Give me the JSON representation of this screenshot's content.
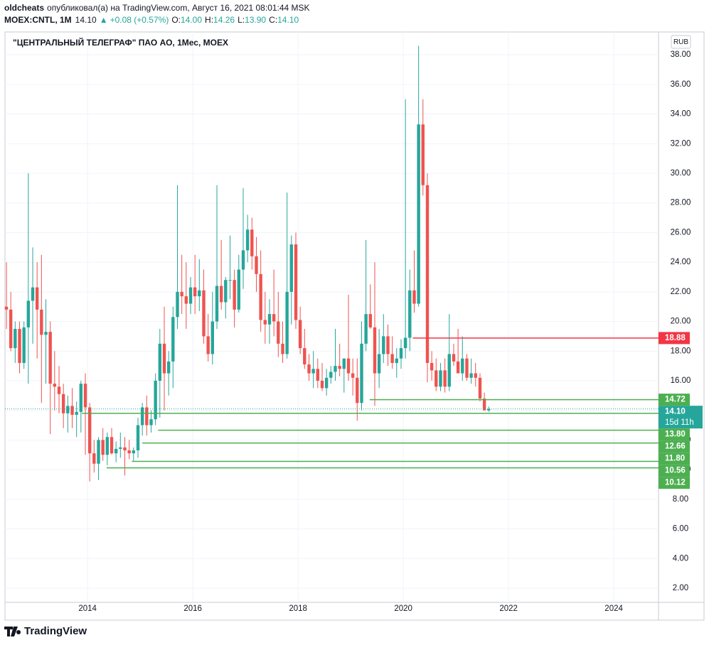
{
  "header": {
    "user": "oldcheats",
    "published": "опубликовал(а) на TradingView.com, Август 16, 2021 08:01:44 MSK",
    "symbol": "MOEX:CNTL, 1M",
    "price": "14.10",
    "change_arrow": "▲",
    "change": "+0.08 (+0.57%)",
    "ohlc_labels": [
      "O:",
      "H:",
      "L:",
      "C:"
    ],
    "ohlc": [
      "14.00",
      "14.26",
      "13.90",
      "14.10"
    ]
  },
  "footer": {
    "brand": "TradingView"
  },
  "chart_data": {
    "type": "candlestick",
    "title": "\"ЦЕНТРАЛЬНЫЙ ТЕЛЕГРАФ\" ПАО АО, 1Мес, MOEX",
    "currency": "RUB",
    "up_color": "#26a69a",
    "down_color": "#ef5350",
    "grid": true,
    "xlim": [
      2012.43,
      2024.85
    ],
    "xticks": [
      2014,
      2016,
      2018,
      2020,
      2022,
      2024
    ],
    "ylim": [
      1.04,
      39.54
    ],
    "yticks": [
      {
        "value": 2,
        "label": "2.00"
      },
      {
        "value": 4,
        "label": "4.00"
      },
      {
        "value": 6,
        "label": "6.00"
      },
      {
        "value": 8,
        "label": "8.00"
      },
      {
        "value": 10,
        "label": "10.00"
      },
      {
        "value": 12,
        "label": "12.00"
      },
      {
        "value": 14,
        "label": "14.00"
      },
      {
        "value": 16,
        "label": "16.00"
      },
      {
        "value": 18,
        "label": "18.00"
      },
      {
        "value": 20,
        "label": "20.00"
      },
      {
        "value": 22,
        "label": "22.00"
      },
      {
        "value": 24,
        "label": "24.00"
      },
      {
        "value": 26,
        "label": "26.00"
      },
      {
        "value": 28,
        "label": "28.00"
      },
      {
        "value": 30,
        "label": "30.00"
      },
      {
        "value": 32,
        "label": "32.00"
      },
      {
        "value": 34,
        "label": "34.00"
      },
      {
        "value": 36,
        "label": "36.00"
      },
      {
        "value": 38,
        "label": "38.00"
      }
    ],
    "x": [
      2012.417,
      2012.5,
      2012.583,
      2012.667,
      2012.75,
      2012.833,
      2012.917,
      2013,
      2013.083,
      2013.167,
      2013.25,
      2013.333,
      2013.417,
      2013.5,
      2013.583,
      2013.667,
      2013.75,
      2013.833,
      2013.917,
      2014,
      2014.083,
      2014.167,
      2014.25,
      2014.333,
      2014.417,
      2014.5,
      2014.583,
      2014.667,
      2014.75,
      2014.833,
      2014.917,
      2015,
      2015.083,
      2015.167,
      2015.25,
      2015.333,
      2015.417,
      2015.5,
      2015.583,
      2015.667,
      2015.75,
      2015.833,
      2015.917,
      2016,
      2016.083,
      2016.167,
      2016.25,
      2016.333,
      2016.417,
      2016.5,
      2016.583,
      2016.667,
      2016.75,
      2016.833,
      2016.917,
      2017,
      2017.083,
      2017.167,
      2017.25,
      2017.333,
      2017.417,
      2017.5,
      2017.583,
      2017.667,
      2017.75,
      2017.833,
      2017.917,
      2018,
      2018.083,
      2018.167,
      2018.25,
      2018.333,
      2018.417,
      2018.5,
      2018.583,
      2018.667,
      2018.75,
      2018.833,
      2018.917,
      2019,
      2019.083,
      2019.167,
      2019.25,
      2019.333,
      2019.417,
      2019.5,
      2019.583,
      2019.667,
      2019.75,
      2019.833,
      2019.917,
      2020,
      2020.083,
      2020.167,
      2020.25,
      2020.333,
      2020.417,
      2020.5,
      2020.583,
      2020.667,
      2020.75,
      2020.833,
      2020.917,
      2021,
      2021.083,
      2021.167,
      2021.25,
      2021.333,
      2021.417,
      2021.5,
      2021.583
    ],
    "open": [
      21,
      20.8,
      18.2,
      19.5,
      17.2,
      19.6,
      21.4,
      22.3,
      20.8,
      19.1,
      19.3,
      15.8,
      15.6,
      15.1,
      13.8,
      14.3,
      13.7,
      13.9,
      15.8,
      14.2,
      11.1,
      10.4,
      12.0,
      11.0,
      12.2,
      11.1,
      11.4,
      11.5,
      11.3,
      11.1,
      11.3,
      13.0,
      14.2,
      13.0,
      13.4,
      16.0,
      18.5,
      16.5,
      17.3,
      20.3,
      22.0,
      21.7,
      21.2,
      22.3,
      21.7,
      22.1,
      19.0,
      17.8,
      20.0,
      22.4,
      21.3,
      22.8,
      22.8,
      20.8,
      23.5,
      24.8,
      26.2,
      24.4,
      23.2,
      20.1,
      19.8,
      20.5,
      20.0,
      18.5,
      17.8,
      22.0,
      25.2,
      20.1,
      18.2,
      17.1,
      16.5,
      16.8,
      16.0,
      15.5,
      16.2,
      16.6,
      17.0,
      16.8,
      17.5,
      16.5,
      16.2,
      14.5,
      18.5,
      20.5,
      19.6,
      16.5,
      17.8,
      19.0,
      17.8,
      17.2,
      17.5,
      18.2,
      18.9,
      22.1,
      21.2,
      33.3,
      29.2,
      17.2,
      16.7,
      15.6,
      16.7,
      15.6,
      17.8,
      17.3,
      16.5,
      17.5,
      16.2,
      16.5,
      16.2,
      14.8,
      14.0
    ],
    "high": [
      24,
      22,
      20,
      20,
      20,
      30,
      25,
      24,
      24.5,
      21.5,
      20,
      18,
      17,
      15.8,
      15,
      15.5,
      14.6,
      16,
      16.5,
      14.5,
      12,
      12.2,
      12.8,
      12.5,
      12.8,
      11.9,
      12.5,
      12.2,
      12,
      11.5,
      13.5,
      14.5,
      15,
      14,
      16.5,
      19.5,
      21,
      18,
      21,
      29.2,
      24.5,
      24,
      23,
      24.5,
      24.2,
      23.5,
      20.5,
      22,
      29.2,
      25.5,
      23,
      25.8,
      23.5,
      24.5,
      29.0,
      27.2,
      27.0,
      25.7,
      24.8,
      22,
      21.5,
      23.5,
      22,
      20,
      28.7,
      25.8,
      26.0,
      21,
      19.5,
      17.8,
      18,
      17.5,
      17.2,
      16.8,
      17,
      19.5,
      18.5,
      17.5,
      21.8,
      17.5,
      17.5,
      20,
      25.5,
      22.5,
      24,
      19.5,
      20.5,
      19.8,
      19,
      18.2,
      18.8,
      35,
      23.5,
      24.8,
      38.6,
      35,
      30,
      18,
      17.5,
      17.2,
      17.5,
      20.5,
      18.5,
      19.5,
      19,
      17.8,
      17.5,
      17.2,
      16.5,
      15.2,
      14.26
    ],
    "low": [
      19.5,
      18,
      17.2,
      16.5,
      16.8,
      15.8,
      18.5,
      17.5,
      14.5,
      15.8,
      12.4,
      14,
      13.8,
      12.8,
      12.5,
      12.8,
      12.2,
      12.5,
      11,
      9.2,
      9.8,
      9.3,
      10.6,
      10.3,
      11,
      10.5,
      10.8,
      9.6,
      10.7,
      10.6,
      10.8,
      12.3,
      12.3,
      12.5,
      13,
      13.5,
      14,
      15,
      15.5,
      19.5,
      20.5,
      19.5,
      20.5,
      20.5,
      20.7,
      18.5,
      17.3,
      17.1,
      19.5,
      20.8,
      20.2,
      21.5,
      19.6,
      20.6,
      22.2,
      24.0,
      23.5,
      22.0,
      19.3,
      18.5,
      18.5,
      19.0,
      17.6,
      17.2,
      17.5,
      19.8,
      19.5,
      17.8,
      16.8,
      16,
      15.5,
      15.5,
      15.3,
      15,
      15.8,
      16,
      16.3,
      15.2,
      16,
      15,
      13.3,
      14,
      18,
      19.5,
      14.3,
      15.5,
      17.2,
      17,
      16.8,
      16.2,
      16.8,
      17.5,
      18.0,
      20.6,
      21.0,
      28.5,
      15.9,
      16,
      15.3,
      15.3,
      15.2,
      15.3,
      17,
      16.5,
      16.0,
      16,
      15.8,
      15.6,
      14.6,
      14.0,
      13.9
    ],
    "close": [
      20.8,
      18.2,
      19.5,
      17.2,
      19.6,
      21.4,
      22.3,
      20.8,
      19.1,
      19.3,
      15.8,
      15.6,
      15.1,
      13.8,
      14.3,
      13.7,
      13.9,
      15.8,
      14.2,
      11.1,
      10.4,
      12.0,
      11.0,
      12.2,
      11.1,
      11.4,
      11.5,
      11.3,
      11.1,
      11.3,
      13.0,
      14.2,
      13.0,
      13.4,
      16.0,
      18.5,
      16.5,
      17.3,
      20.3,
      22.0,
      21.7,
      21.2,
      22.3,
      21.7,
      22.1,
      19.0,
      17.8,
      20.0,
      22.4,
      21.3,
      22.8,
      22.8,
      20.8,
      23.5,
      24.8,
      26.2,
      24.4,
      23.2,
      20.1,
      19.8,
      20.5,
      20.0,
      18.5,
      17.8,
      22.0,
      25.2,
      20.1,
      18.2,
      17.1,
      16.5,
      16.8,
      16.0,
      15.5,
      16.2,
      16.6,
      17.0,
      16.8,
      17.5,
      16.5,
      16.2,
      14.5,
      18.5,
      20.5,
      19.6,
      16.5,
      17.8,
      19.0,
      17.8,
      17.2,
      17.5,
      18.2,
      18.9,
      22.1,
      21.2,
      33.3,
      29.2,
      17.2,
      16.7,
      15.6,
      16.7,
      15.6,
      17.8,
      17.3,
      16.5,
      17.5,
      16.2,
      16.5,
      16.2,
      14.8,
      14.0,
      14.1
    ],
    "levels": [
      {
        "price": 18.88,
        "price_label": "18.88",
        "color": "#f23645",
        "start": 2020.18
      },
      {
        "price": 14.72,
        "price_label": "14.72",
        "color": "#4caf50",
        "start": 2019.36
      },
      {
        "price": 13.8,
        "price_label": "13.80",
        "color": "#4caf50",
        "start": 2013.89
      },
      {
        "price": 12.66,
        "price_label": "12.66",
        "color": "#4caf50",
        "start": 2015.34
      },
      {
        "price": 11.8,
        "price_label": "11.80",
        "color": "#4caf50",
        "start": 2015.04
      },
      {
        "price": 10.56,
        "price_label": "10.56",
        "color": "#4caf50",
        "start": 2014.84
      },
      {
        "price": 10.12,
        "price_label": "10.12",
        "color": "#4caf50",
        "start": 2014.36
      }
    ],
    "last": {
      "price": 14.1,
      "price_label": "14.10",
      "countdown": "15d 11h",
      "color": "#26a69a"
    }
  }
}
